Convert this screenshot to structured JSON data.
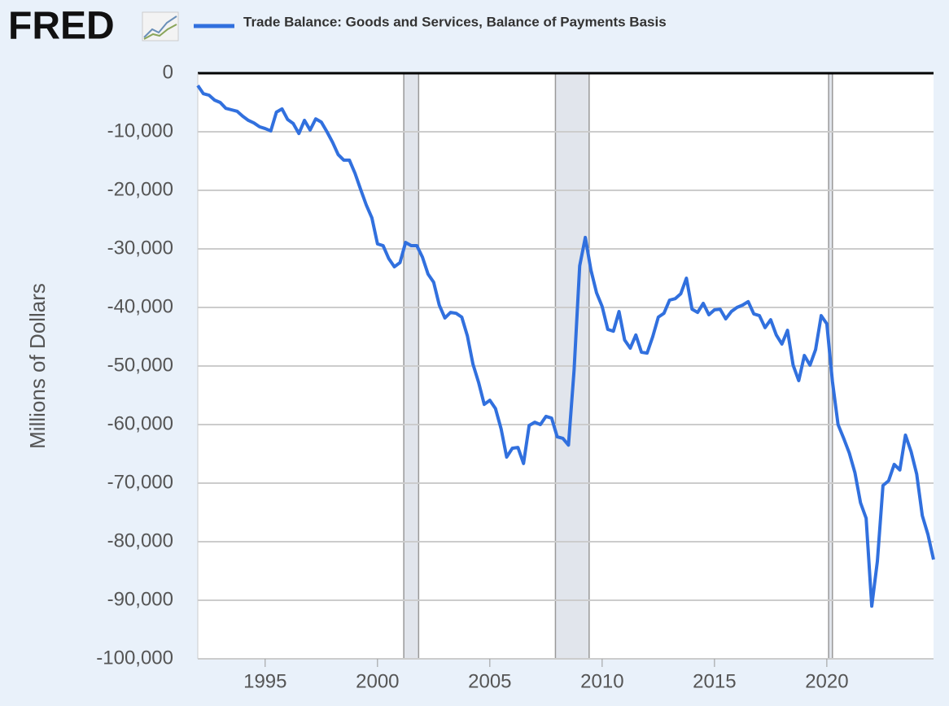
{
  "logo": "FRED",
  "chart_data": {
    "type": "line",
    "y_label": "Millions of Dollars",
    "x": [
      1992,
      1992.25,
      1992.5,
      1992.75,
      1993,
      1993.25,
      1993.5,
      1993.75,
      1994,
      1994.25,
      1994.5,
      1994.75,
      1995,
      1995.25,
      1995.5,
      1995.75,
      1996,
      1996.25,
      1996.5,
      1996.75,
      1997,
      1997.25,
      1997.5,
      1997.75,
      1998,
      1998.25,
      1998.5,
      1998.75,
      1999,
      1999.25,
      1999.5,
      1999.75,
      2000,
      2000.25,
      2000.5,
      2000.75,
      2001,
      2001.25,
      2001.5,
      2001.75,
      2002,
      2002.25,
      2002.5,
      2002.75,
      2003,
      2003.25,
      2003.5,
      2003.75,
      2004,
      2004.25,
      2004.5,
      2004.75,
      2005,
      2005.25,
      2005.5,
      2005.75,
      2006,
      2006.25,
      2006.5,
      2006.75,
      2007,
      2007.25,
      2007.5,
      2007.75,
      2008,
      2008.25,
      2008.5,
      2008.75,
      2009,
      2009.25,
      2009.5,
      2009.75,
      2010,
      2010.25,
      2010.5,
      2010.75,
      2011,
      2011.25,
      2011.5,
      2011.75,
      2012,
      2012.25,
      2012.5,
      2012.75,
      2013,
      2013.25,
      2013.5,
      2013.75,
      2014,
      2014.25,
      2014.5,
      2014.75,
      2015,
      2015.25,
      2015.5,
      2015.75,
      2016,
      2016.25,
      2016.5,
      2016.75,
      2017,
      2017.25,
      2017.5,
      2017.75,
      2018,
      2018.25,
      2018.5,
      2018.75,
      2019,
      2019.25,
      2019.5,
      2019.75,
      2020,
      2020.25,
      2020.5,
      2020.75,
      2021,
      2021.25,
      2021.5,
      2021.75,
      2022,
      2022.25,
      2022.5,
      2022.75,
      2023,
      2023.25,
      2023.5,
      2023.75,
      2024,
      2024.25,
      2024.5,
      2024.75
    ],
    "series": [
      {
        "name": "Trade Balance: Goods and Services, Balance of Payments Basis",
        "color": "#3170de",
        "values": [
          -2100,
          -3500,
          -3750,
          -4600,
          -5000,
          -6000,
          -6250,
          -6500,
          -7350,
          -8050,
          -8500,
          -9150,
          -9450,
          -9850,
          -6650,
          -6100,
          -7900,
          -8600,
          -10300,
          -8050,
          -9700,
          -7800,
          -8350,
          -10000,
          -11800,
          -13900,
          -14850,
          -14850,
          -17100,
          -19850,
          -22500,
          -24700,
          -29150,
          -29450,
          -31650,
          -33050,
          -32350,
          -28900,
          -29450,
          -29450,
          -31400,
          -34300,
          -35700,
          -39600,
          -41800,
          -40850,
          -41000,
          -41650,
          -44850,
          -49700,
          -52800,
          -56550,
          -55850,
          -57250,
          -60700,
          -65550,
          -64050,
          -63900,
          -66650,
          -60150,
          -59600,
          -60000,
          -58600,
          -58900,
          -62100,
          -62350,
          -63500,
          -50700,
          -32900,
          -28050,
          -33600,
          -37500,
          -39850,
          -43750,
          -44050,
          -40700,
          -45550,
          -46950,
          -44700,
          -47650,
          -47800,
          -45000,
          -41650,
          -41000,
          -38750,
          -38500,
          -37650,
          -35000,
          -40300,
          -40850,
          -39300,
          -41250,
          -40400,
          -40300,
          -41950,
          -40700,
          -40000,
          -39600,
          -39000,
          -41100,
          -41400,
          -43450,
          -42100,
          -44700,
          -46250,
          -43900,
          -49850,
          -52500,
          -48200,
          -49850,
          -47200,
          -41400,
          -42800,
          -52650,
          -60000,
          -62350,
          -64850,
          -68200,
          -73350,
          -76000,
          -91000,
          -83350,
          -70400,
          -69600,
          -66800,
          -67750,
          -61800,
          -64600,
          -68450,
          -75550,
          -78750,
          -83050
        ]
      }
    ],
    "recessions": [
      [
        2001.17,
        2001.83
      ],
      [
        2007.92,
        2009.42
      ],
      [
        2020.08,
        2020.25
      ]
    ],
    "xlim": [
      1992,
      2024.75
    ],
    "xticks": [
      1995,
      2000,
      2005,
      2010,
      2015,
      2020
    ],
    "ylim": [
      -100000,
      0
    ],
    "yticks": [
      0,
      {
        "value": -10000,
        "label": "-10,000"
      },
      {
        "value": -20000,
        "label": "-20,000"
      },
      {
        "value": -30000,
        "label": "-30,000"
      },
      {
        "value": -40000,
        "label": "-40,000"
      },
      {
        "value": -50000,
        "label": "-50,000"
      },
      {
        "value": -60000,
        "label": "-60,000"
      },
      {
        "value": -70000,
        "label": "-70,000"
      },
      {
        "value": -80000,
        "label": "-80,000"
      },
      {
        "value": -90000,
        "label": "-90,000"
      },
      {
        "value": -100000,
        "label": "-100,000"
      }
    ],
    "grid": true
  }
}
